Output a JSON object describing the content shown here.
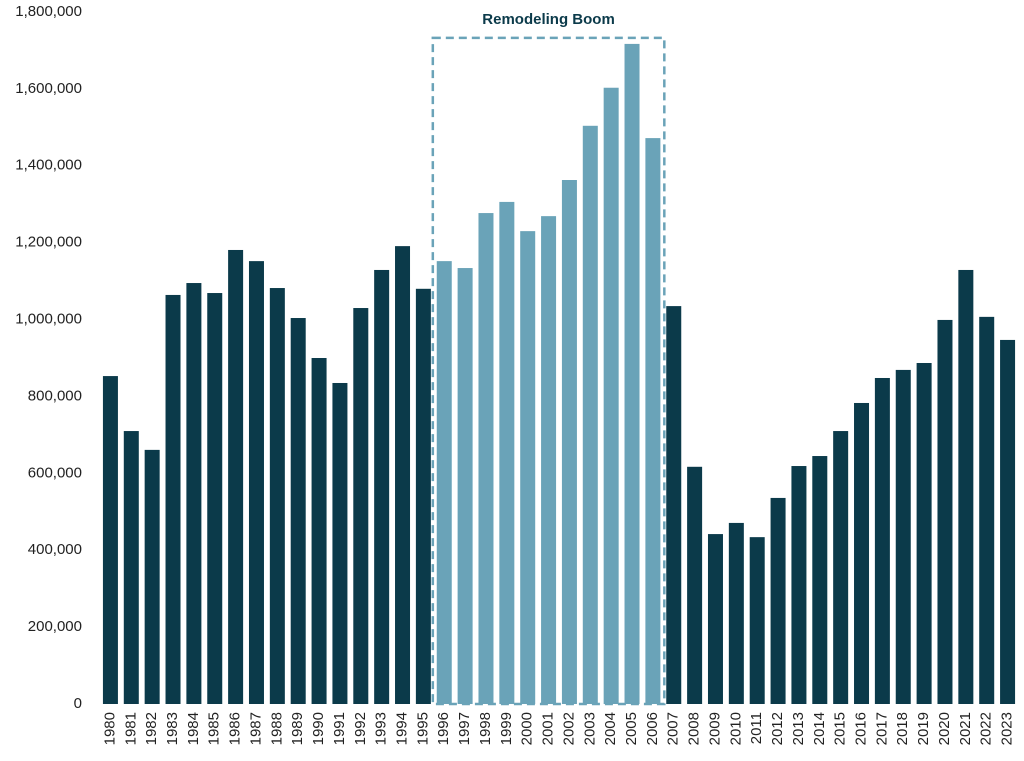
{
  "chart_data": {
    "type": "bar",
    "categories": [
      "1980",
      "1981",
      "1982",
      "1983",
      "1984",
      "1985",
      "1986",
      "1987",
      "1988",
      "1989",
      "1990",
      "1991",
      "1992",
      "1993",
      "1994",
      "1995",
      "1996",
      "1997",
      "1998",
      "1999",
      "2000",
      "2001",
      "2002",
      "2003",
      "2004",
      "2005",
      "2006",
      "2007",
      "2008",
      "2009",
      "2010",
      "2011",
      "2012",
      "2013",
      "2014",
      "2015",
      "2016",
      "2017",
      "2018",
      "2019",
      "2020",
      "2021",
      "2022",
      "2023"
    ],
    "values": [
      853000,
      710000,
      661000,
      1064000,
      1095000,
      1069000,
      1181000,
      1152000,
      1082000,
      1004000,
      900000,
      835000,
      1030000,
      1129000,
      1191000,
      1080000,
      1152000,
      1134000,
      1277000,
      1306000,
      1230000,
      1269000,
      1363000,
      1504000,
      1603000,
      1717000,
      1472000,
      1035000,
      617000,
      442000,
      471000,
      434000,
      536000,
      619000,
      645000,
      710000,
      783000,
      848000,
      869000,
      887000,
      999000,
      1129000,
      1007000,
      947000
    ],
    "colors": [
      "#0b3a4a",
      "#0b3a4a",
      "#0b3a4a",
      "#0b3a4a",
      "#0b3a4a",
      "#0b3a4a",
      "#0b3a4a",
      "#0b3a4a",
      "#0b3a4a",
      "#0b3a4a",
      "#0b3a4a",
      "#0b3a4a",
      "#0b3a4a",
      "#0b3a4a",
      "#0b3a4a",
      "#0b3a4a",
      "#6aa3b8",
      "#6aa3b8",
      "#6aa3b8",
      "#6aa3b8",
      "#6aa3b8",
      "#6aa3b8",
      "#6aa3b8",
      "#6aa3b8",
      "#6aa3b8",
      "#6aa3b8",
      "#6aa3b8",
      "#0b3a4a",
      "#0b3a4a",
      "#0b3a4a",
      "#0b3a4a",
      "#0b3a4a",
      "#0b3a4a",
      "#0b3a4a",
      "#0b3a4a",
      "#0b3a4a",
      "#0b3a4a",
      "#0b3a4a",
      "#0b3a4a",
      "#0b3a4a",
      "#0b3a4a",
      "#0b3a4a",
      "#0b3a4a",
      "#0b3a4a"
    ],
    "annotation": {
      "text": "Remodeling Boom",
      "color": "#6aa3b8"
    },
    "ylim": [
      0,
      1800000
    ],
    "yticks": [
      0,
      {
        "value": 200000,
        "label": "200,000"
      },
      {
        "value": 400000,
        "label": "400,000"
      },
      {
        "value": 600000,
        "label": "600,000"
      },
      {
        "value": 800000,
        "label": "800,000"
      },
      {
        "value": 1000000,
        "label": "1,000,000"
      },
      {
        "value": 1200000,
        "label": "1,200,000"
      },
      {
        "value": 1400000,
        "label": "1,400,000"
      },
      {
        "value": 1600000,
        "label": "1,600,000"
      },
      {
        "value": 1800000,
        "label": "1,800,000"
      }
    ],
    "grid": false
  }
}
